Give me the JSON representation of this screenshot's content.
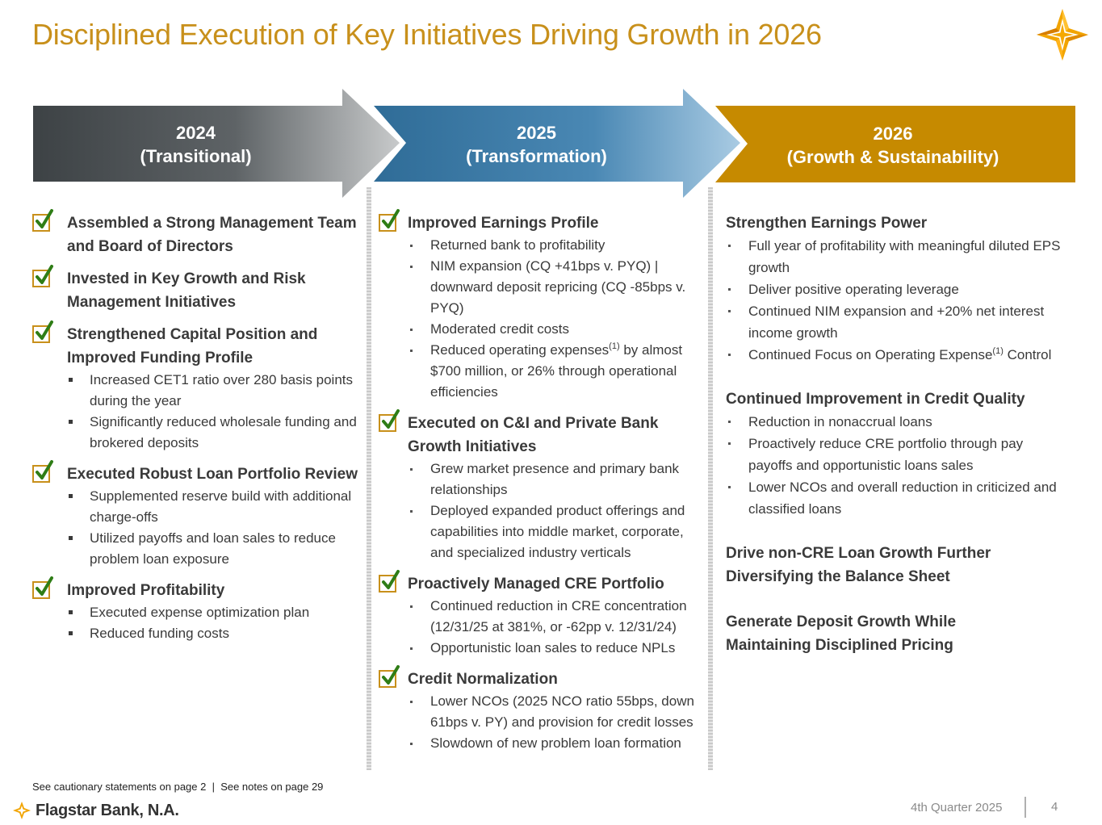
{
  "title": "Disciplined Execution of Key Initiatives Driving Growth in 2026",
  "colors": {
    "gold": "#c8901b",
    "dark": "#3f4447",
    "blue": "#3c7aa5",
    "text": "#3a3a3a"
  },
  "icons": {
    "logo": "flagstar-star-icon",
    "check": "checkbox-checked-icon"
  },
  "timeline": [
    {
      "year": "2024",
      "label": "(Transitional)"
    },
    {
      "year": "2025",
      "label": "(Transformation)"
    },
    {
      "year": "2026",
      "label": "(Growth & Sustainability)"
    }
  ],
  "col2024": {
    "sections": [
      {
        "head": "Assembled a Strong Management Team and Board of Directors",
        "items": []
      },
      {
        "head": "Invested in Key Growth and Risk Management Initiatives",
        "items": []
      },
      {
        "head": "Strengthened Capital Position and Improved Funding Profile",
        "items": [
          "Increased CET1 ratio over 280 basis points during the year",
          "Significantly reduced wholesale funding and brokered deposits"
        ]
      },
      {
        "head": "Executed Robust Loan Portfolio Review",
        "items": [
          "Supplemented reserve build with additional charge-offs",
          "Utilized payoffs and loan sales to reduce problem loan exposure"
        ]
      },
      {
        "head": "Improved Profitability",
        "items": [
          "Executed expense optimization plan",
          "Reduced funding costs"
        ]
      }
    ]
  },
  "col2025": {
    "sections": [
      {
        "head": "Improved Earnings Profile",
        "items": [
          "Returned bank to profitability",
          "NIM expansion (CQ +41bps v. PYQ) | downward deposit repricing (CQ -85bps v. PYQ)",
          "Moderated credit costs"
        ],
        "opex_pre": "Reduced operating expenses",
        "opex_sup": "(1)",
        "opex_post": " by almost $700 million, or 26% through operational efficiencies"
      },
      {
        "head": "Executed on C&I and Private Bank Growth Initiatives",
        "items": [
          "Grew market presence and primary bank relationships",
          "Deployed expanded product offerings and capabilities into middle market, corporate, and specialized industry verticals"
        ]
      },
      {
        "head": "Proactively Managed CRE Portfolio",
        "items": [
          "Continued reduction in CRE concentration (12/31/25 at 381%, or -62pp v. 12/31/24)",
          "Opportunistic loan sales to reduce NPLs"
        ]
      },
      {
        "head": "Credit Normalization",
        "items": [
          "Lower NCOs (2025 NCO ratio 55bps, down 61bps v. PY) and provision for credit losses",
          "Slowdown of new problem loan formation"
        ]
      }
    ]
  },
  "col2026": {
    "sections": [
      {
        "head": "Strengthen Earnings Power",
        "items": [
          "Full year of profitability with meaningful diluted EPS growth",
          "Deliver positive operating leverage",
          "Continued NIM expansion and +20% net interest income growth"
        ],
        "opex_pre": "Continued Focus on Operating Expense",
        "opex_sup": "(1)",
        "opex_post": " Control"
      },
      {
        "head": "Continued Improvement in Credit Quality",
        "items": [
          "Reduction in nonaccrual loans",
          "Proactively reduce CRE portfolio through pay payoffs and opportunistic loans sales",
          "Lower NCOs and overall reduction in criticized and classified loans"
        ]
      },
      {
        "head": "Drive non-CRE Loan Growth Further Diversifying the Balance Sheet",
        "items": []
      },
      {
        "head": "Generate Deposit Growth While Maintaining Disciplined Pricing",
        "items": []
      }
    ]
  },
  "footer": {
    "note": "See cautionary statements on page 2  |  See notes on page 29",
    "brand": "Flagstar Bank, N.A.",
    "quarter": "4th Quarter 2025",
    "page": "4"
  }
}
